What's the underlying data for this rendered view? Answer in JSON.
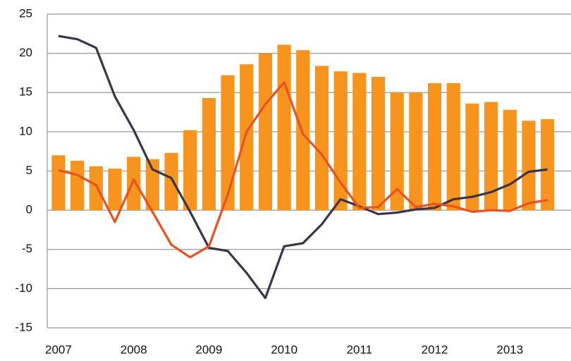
{
  "chart_data": {
    "type": "bar_line",
    "categories": [
      "2007",
      null,
      null,
      null,
      "2008",
      null,
      null,
      null,
      "2009",
      null,
      null,
      null,
      "2010",
      null,
      null,
      null,
      "2011",
      null,
      null,
      null,
      "2012",
      null,
      null,
      null,
      "2013",
      null,
      null
    ],
    "series": [
      {
        "type": "bar",
        "color": "#f7941d",
        "values": [
          7.0,
          6.3,
          5.6,
          5.3,
          6.8,
          6.5,
          7.3,
          10.2,
          14.3,
          17.2,
          18.6,
          20.0,
          21.1,
          20.4,
          18.4,
          17.7,
          17.5,
          17.0,
          15.0,
          15.0,
          16.2,
          16.2,
          13.6,
          13.8,
          12.8,
          11.4,
          11.6
        ]
      },
      {
        "type": "line",
        "color": "#3b3447",
        "values": [
          22.2,
          21.8,
          20.7,
          14.5,
          10.2,
          5.2,
          4.1,
          -0.2,
          -4.8,
          -5.2,
          -8.0,
          -11.2,
          -4.6,
          -4.2,
          -1.8,
          1.4,
          0.5,
          -0.5,
          -0.3,
          0.1,
          0.3,
          1.4,
          1.7,
          2.3,
          3.3,
          4.9,
          5.2
        ]
      },
      {
        "type": "line",
        "color": "#e8521e",
        "values": [
          5.1,
          4.5,
          3.2,
          -1.5,
          3.9,
          -0.2,
          -4.4,
          -6.0,
          -4.6,
          2.0,
          10.0,
          13.5,
          16.3,
          9.7,
          7.1,
          3.5,
          0.3,
          0.4,
          2.7,
          0.4,
          0.8,
          0.5,
          -0.2,
          0.0,
          -0.1,
          0.9,
          1.3
        ]
      }
    ],
    "ylim": [
      -15,
      25
    ],
    "yticks": [
      -15,
      -10,
      -5,
      0,
      5,
      10,
      15,
      20,
      25
    ],
    "grid": true
  }
}
